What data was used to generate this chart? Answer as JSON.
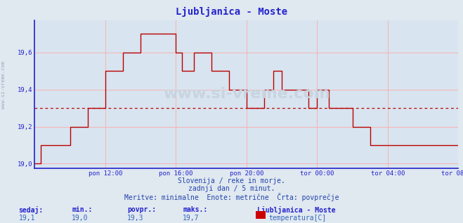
{
  "title": "Ljubljanica - Moste",
  "subtitle1": "Slovenija / reke in morje.",
  "subtitle2": "zadnji dan / 5 minut.",
  "subtitle3": "Meritve: minimalne  Enote: metrične  Črta: povprečje",
  "xlabel_ticks": [
    "pon 12:00",
    "pon 16:00",
    "pon 20:00",
    "tor 00:00",
    "tor 04:00",
    "tor 08:00"
  ],
  "ytick_vals": [
    19.0,
    19.2,
    19.4,
    19.6
  ],
  "ytick_labels": [
    "19,0",
    "19,2",
    "19,4",
    "19,6"
  ],
  "ylim": [
    18.975,
    19.775
  ],
  "xlim": [
    0,
    288
  ],
  "avg_line": 19.3,
  "stats_labels": [
    "sedaj:",
    "min.:",
    "povpr.:",
    "maks.:"
  ],
  "stats_values": [
    "19,1",
    "19,0",
    "19,3",
    "19,7"
  ],
  "legend_label": "Ljubljanica - Moste",
  "series_label": "temperatura[C]",
  "line_color": "#bb0000",
  "avg_line_color": "#bb0000",
  "background_color": "#e0e8f0",
  "plot_bg_color": "#d8e4ef",
  "grid_color": "#ffffff",
  "axis_color": "#2222cc",
  "title_color": "#2222cc",
  "text_color": "#2244aa",
  "stats_label_color": "#2222cc",
  "stats_value_color": "#3366bb",
  "watermark": "www.si-vreme.com",
  "x_tick_positions": [
    48,
    96,
    144,
    192,
    240,
    288
  ],
  "data_x": [
    0,
    4,
    4,
    24,
    24,
    36,
    36,
    48,
    48,
    60,
    60,
    72,
    72,
    84,
    84,
    96,
    96,
    100,
    100,
    108,
    108,
    120,
    120,
    132,
    132,
    144,
    144,
    156,
    156,
    162,
    162,
    168,
    168,
    174,
    174,
    180,
    180,
    186,
    186,
    192,
    192,
    200,
    200,
    216,
    216,
    228,
    228,
    240,
    240,
    252,
    252,
    288
  ],
  "data_y": [
    19.0,
    19.0,
    19.1,
    19.1,
    19.2,
    19.2,
    19.3,
    19.3,
    19.5,
    19.5,
    19.6,
    19.6,
    19.7,
    19.7,
    19.7,
    19.7,
    19.6,
    19.6,
    19.5,
    19.5,
    19.6,
    19.6,
    19.5,
    19.5,
    19.4,
    19.4,
    19.3,
    19.3,
    19.4,
    19.4,
    19.5,
    19.5,
    19.4,
    19.4,
    19.4,
    19.4,
    19.4,
    19.4,
    19.3,
    19.3,
    19.4,
    19.4,
    19.3,
    19.3,
    19.2,
    19.2,
    19.1,
    19.1,
    19.1,
    19.1,
    19.1,
    19.1
  ],
  "legend_rect_color": "#cc0000",
  "watermark_color": "#9aaabb",
  "left_text_color": "#9aaabb"
}
